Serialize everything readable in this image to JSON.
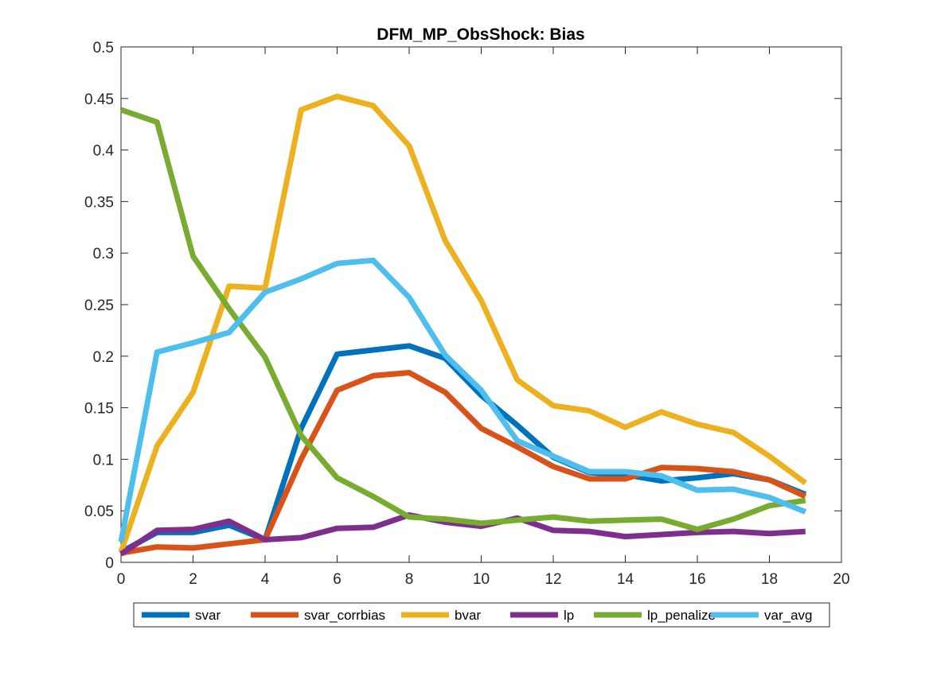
{
  "chart_data": {
    "type": "line",
    "title": "DFM_MP_ObsShock: Bias",
    "xlabel": "",
    "ylabel": "",
    "xlim": [
      0,
      20
    ],
    "ylim": [
      0,
      0.5
    ],
    "xticks": [
      0,
      2,
      4,
      6,
      8,
      10,
      12,
      14,
      16,
      18,
      20
    ],
    "yticks": [
      0,
      0.05,
      0.1,
      0.15,
      0.2,
      0.25,
      0.3,
      0.35,
      0.4,
      0.45,
      0.5
    ],
    "xtick_labels": [
      "0",
      "2",
      "4",
      "6",
      "8",
      "10",
      "12",
      "14",
      "16",
      "18",
      "20"
    ],
    "ytick_labels": [
      "0",
      "0.05",
      "0.1",
      "0.15",
      "0.2",
      "0.25",
      "0.3",
      "0.35",
      "0.4",
      "0.45",
      "0.5"
    ],
    "grid": false,
    "legend_position": "bottom-outside",
    "legend_orientation": "horizontal",
    "x": [
      0,
      1,
      2,
      3,
      4,
      5,
      6,
      7,
      8,
      9,
      10,
      11,
      12,
      13,
      14,
      15,
      16,
      17,
      18,
      19
    ],
    "series": [
      {
        "name": "svar",
        "color": "#0072BD",
        "values": [
          0.01,
          0.029,
          0.029,
          0.036,
          0.022,
          0.13,
          0.202,
          0.206,
          0.21,
          0.198,
          0.162,
          0.133,
          0.102,
          0.087,
          0.085,
          0.079,
          0.082,
          0.086,
          0.08,
          0.066
        ]
      },
      {
        "name": "svar_corrbias",
        "color": "#D95319",
        "values": [
          0.009,
          0.015,
          0.014,
          0.018,
          0.022,
          0.1,
          0.167,
          0.181,
          0.184,
          0.165,
          0.13,
          0.112,
          0.093,
          0.081,
          0.081,
          0.092,
          0.091,
          0.088,
          0.08,
          0.064
        ]
      },
      {
        "name": "bvar",
        "color": "#EDB120",
        "values": [
          0.01,
          0.113,
          0.165,
          0.268,
          0.266,
          0.439,
          0.452,
          0.443,
          0.404,
          0.312,
          0.254,
          0.177,
          0.152,
          0.147,
          0.131,
          0.146,
          0.134,
          0.126,
          0.103,
          0.077
        ]
      },
      {
        "name": "lp",
        "color": "#7E2F8E",
        "values": [
          0.008,
          0.031,
          0.032,
          0.04,
          0.022,
          0.024,
          0.033,
          0.034,
          0.046,
          0.039,
          0.035,
          0.043,
          0.031,
          0.03,
          0.025,
          0.027,
          0.029,
          0.03,
          0.028,
          0.03
        ]
      },
      {
        "name": "lp_penalize",
        "color": "#77AC30",
        "values": [
          0.439,
          0.427,
          0.297,
          0.246,
          0.199,
          0.123,
          0.082,
          0.064,
          0.044,
          0.042,
          0.038,
          0.041,
          0.044,
          0.04,
          0.041,
          0.042,
          0.032,
          0.042,
          0.055,
          0.06
        ]
      },
      {
        "name": "var_avg",
        "color": "#4DBEEE",
        "values": [
          0.02,
          0.204,
          0.213,
          0.223,
          0.262,
          0.275,
          0.29,
          0.293,
          0.257,
          0.201,
          0.167,
          0.118,
          0.103,
          0.088,
          0.088,
          0.084,
          0.07,
          0.071,
          0.063,
          0.049
        ]
      }
    ]
  }
}
